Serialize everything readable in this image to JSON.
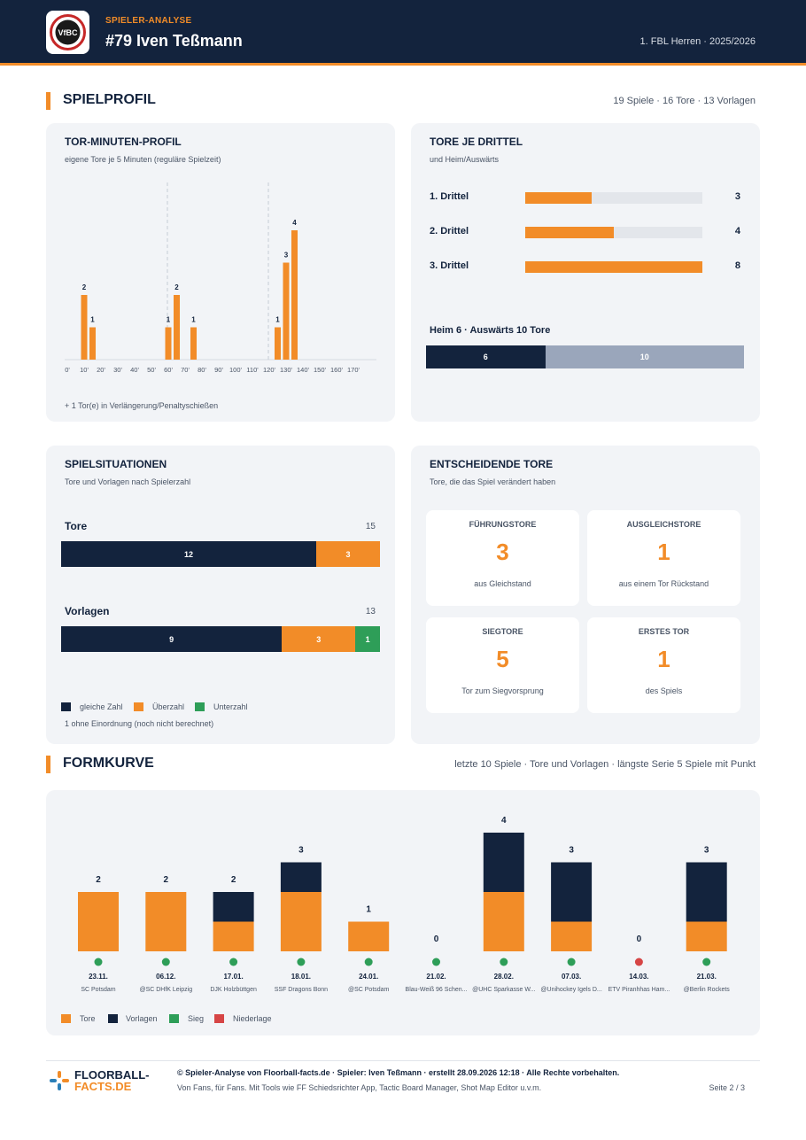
{
  "header": {
    "kicker": "SPIELER-ANALYSE",
    "player": "#79 Iven Teßmann",
    "league": "1. FBL Herren · 2025/2026",
    "logo_text": "VfBC"
  },
  "spielprofil": {
    "title": "SPIELPROFIL",
    "meta": "19 Spiele · 16 Tore · 13 Vorlagen"
  },
  "tor_minuten": {
    "title": "TOR-MINUTEN-PROFIL",
    "subtitle": "eigene Tore je 5 Minuten (reguläre Spielzeit)",
    "note": "+ 1 Tor(e) in Verlängerung/Penaltyschießen",
    "chart_data": {
      "type": "bar",
      "x_unit": "minute",
      "bin_width": 5,
      "bars": [
        {
          "minute": 10,
          "value": 2
        },
        {
          "minute": 15,
          "value": 1
        },
        {
          "minute": 60,
          "value": 1
        },
        {
          "minute": 65,
          "value": 2
        },
        {
          "minute": 75,
          "value": 1
        },
        {
          "minute": 125,
          "value": 1
        },
        {
          "minute": 130,
          "value": 3
        },
        {
          "minute": 135,
          "value": 4
        }
      ],
      "tick_labels": [
        "0'",
        "10'",
        "20'",
        "30'",
        "40'",
        "50'",
        "60'",
        "70'",
        "80'",
        "90'",
        "100'",
        "110'",
        "120'",
        "130'",
        "140'",
        "150'",
        "160'",
        "170'"
      ],
      "period_dividers": [
        60,
        120
      ],
      "ymax": 4,
      "bar_color": "#f28c28"
    }
  },
  "tore_drittel": {
    "title": "TORE JE DRITTEL",
    "subtitle": "und Heim/Auswärts",
    "max": 8,
    "rows": [
      {
        "label": "1. Drittel",
        "value": 3
      },
      {
        "label": "2. Drittel",
        "value": 4
      },
      {
        "label": "3. Drittel",
        "value": 8
      }
    ],
    "ha_label": "Heim 6 · Auswärts 10 Tore",
    "heim": 6,
    "auswaerts": 10
  },
  "situationen": {
    "title": "SPIELSITUATIONEN",
    "subtitle": "Tore und Vorlagen nach Spielerzahl",
    "rows": [
      {
        "label": "Tore",
        "total": 15,
        "gleich": 12,
        "ueber": 3,
        "unter": 0
      },
      {
        "label": "Vorlagen",
        "total": 13,
        "gleich": 9,
        "ueber": 3,
        "unter": 1
      }
    ],
    "legend": [
      "gleiche Zahl",
      "Überzahl",
      "Unterzahl"
    ],
    "note": "1 ohne Einordnung (noch nicht berechnet)",
    "colors": {
      "gleich": "#13233d",
      "ueber": "#f28c28",
      "unter": "#2e9e58"
    }
  },
  "entscheidend": {
    "title": "ENTSCHEIDENDE TORE",
    "subtitle": "Tore, die das Spiel verändert haben",
    "stats": [
      {
        "label": "FÜHRUNGSTORE",
        "value": "3",
        "sub": "aus Gleichstand"
      },
      {
        "label": "AUSGLEICHSTORE",
        "value": "1",
        "sub": "aus einem Tor Rückstand"
      },
      {
        "label": "SIEGTORE",
        "value": "5",
        "sub": "Tor zum Siegvorsprung"
      },
      {
        "label": "ERSTES TOR",
        "value": "1",
        "sub": "des Spiels"
      }
    ]
  },
  "formkurve": {
    "title": "FORMKURVE",
    "meta": "letzte 10 Spiele · Tore und Vorlagen · längste Serie 5 Spiele mit Punkt",
    "legend": [
      "Tore",
      "Vorlagen",
      "Sieg",
      "Niederlage"
    ],
    "chart_data": {
      "type": "bar",
      "stacked": true,
      "categories": [
        "23.11.",
        "06.12.",
        "17.01.",
        "18.01.",
        "24.01.",
        "21.02.",
        "28.02.",
        "07.03.",
        "14.03.",
        "21.03."
      ],
      "opponents": [
        "SC Potsdam",
        "@SC DHfK Leipzig",
        "DJK Holzbüttgen",
        "SSF Dragons Bonn",
        "@SC Potsdam",
        "Blau-Weiß 96 Schen...",
        "@UHC Sparkasse W...",
        "@Unihockey Igels D...",
        "ETV Piranhhas Ham...",
        "@Berlin Rockets"
      ],
      "series": [
        {
          "name": "Tore",
          "values": [
            2,
            2,
            1,
            2,
            1,
            0,
            2,
            1,
            0,
            1
          ]
        },
        {
          "name": "Vorlagen",
          "values": [
            0,
            0,
            1,
            1,
            0,
            0,
            2,
            2,
            0,
            2
          ]
        }
      ],
      "totals": [
        2,
        2,
        2,
        3,
        1,
        0,
        4,
        3,
        0,
        3
      ],
      "results": [
        "Sieg",
        "Sieg",
        "Sieg",
        "Sieg",
        "Sieg",
        "Sieg",
        "Sieg",
        "Sieg",
        "Niederlage",
        "Sieg"
      ],
      "colors": {
        "Tore": "#f28c28",
        "Vorlagen": "#13233d",
        "Sieg": "#2e9e58",
        "Niederlage": "#d64545"
      }
    }
  },
  "footer": {
    "brand_line1": "FLOORBALL-",
    "brand_line2": "FACTS.DE",
    "copyright": "© Spieler-Analyse von Floorball-facts.de · Spieler: Iven Teßmann · erstellt 28.09.2026 12:18 · Alle Rechte vorbehalten.",
    "tagline": "Von Fans, für Fans. Mit Tools wie FF Schiedsrichter App, Tactic Board Manager, Shot Map Editor u.v.m.",
    "page": "Seite 2 / 3"
  }
}
